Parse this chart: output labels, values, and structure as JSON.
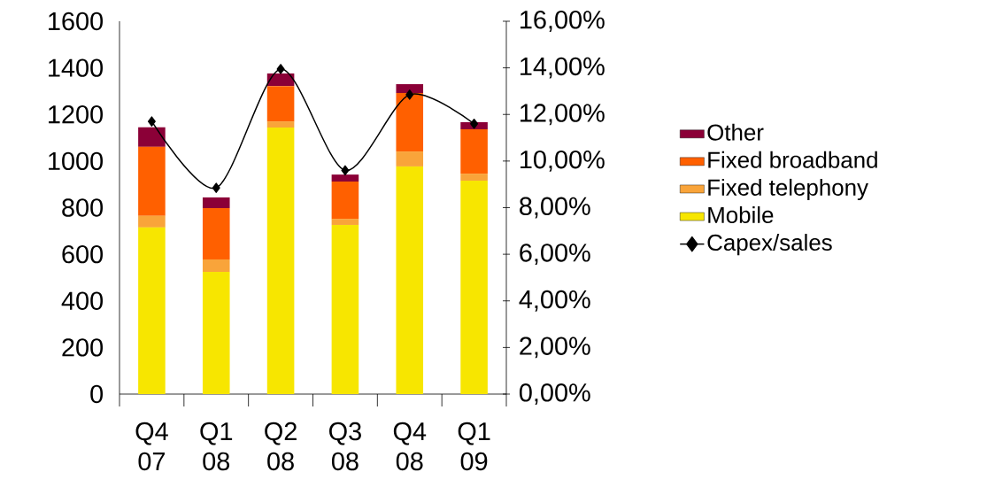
{
  "chart_data": {
    "type": "bar",
    "stacked": true,
    "categories": [
      "Q4 07",
      "Q1 08",
      "Q2 08",
      "Q3 08",
      "Q4 08",
      "Q1 09"
    ],
    "series": [
      {
        "name": "Mobile",
        "color": "#f7e600",
        "values": [
          715,
          524,
          1144,
          726,
          977,
          916
        ]
      },
      {
        "name": "Fixed telephony",
        "color": "#f9a43a",
        "values": [
          50,
          54,
          26,
          26,
          64,
          30
        ]
      },
      {
        "name": "Fixed broadband",
        "color": "#ff6000",
        "values": [
          296,
          220,
          152,
          160,
          251,
          190
        ]
      },
      {
        "name": "Other",
        "color": "#8b0037",
        "values": [
          84,
          46,
          54,
          30,
          38,
          31
        ]
      },
      {
        "name": "Capex/sales",
        "type": "line",
        "axis": "y2",
        "color": "#000000",
        "marker": "diamond",
        "values": [
          11.7,
          8.85,
          13.95,
          9.6,
          12.85,
          11.6
        ]
      }
    ],
    "ylim": [
      0,
      1600
    ],
    "yticks": [
      0,
      200,
      400,
      600,
      800,
      1000,
      1200,
      1400,
      1600
    ],
    "y2lim": [
      0,
      16
    ],
    "y2ticks": [
      {
        "value": 0,
        "label": "0,00%"
      },
      {
        "value": 2,
        "label": "2,00%"
      },
      {
        "value": 4,
        "label": "4,00%"
      },
      {
        "value": 6,
        "label": "6,00%"
      },
      {
        "value": 8,
        "label": "8,00%"
      },
      {
        "value": 10,
        "label": "10,00%"
      },
      {
        "value": 12,
        "label": "12,00%"
      },
      {
        "value": 14,
        "label": "14,00%"
      },
      {
        "value": 16,
        "label": "16,00%"
      }
    ],
    "legend": "right"
  }
}
